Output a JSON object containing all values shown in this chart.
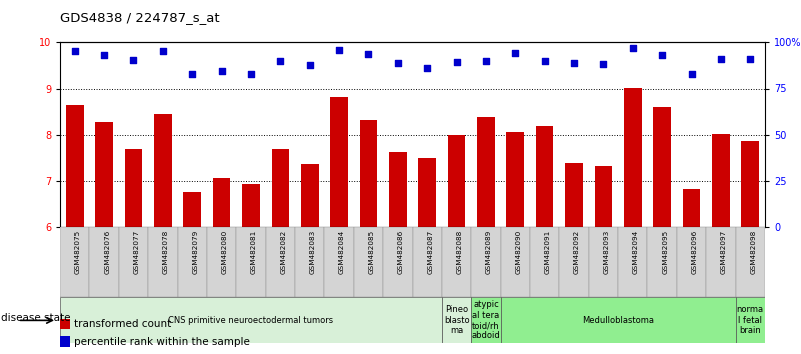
{
  "title": "GDS4838 / 224787_s_at",
  "samples": [
    "GSM482075",
    "GSM482076",
    "GSM482077",
    "GSM482078",
    "GSM482079",
    "GSM482080",
    "GSM482081",
    "GSM482082",
    "GSM482083",
    "GSM482084",
    "GSM482085",
    "GSM482086",
    "GSM482087",
    "GSM482088",
    "GSM482089",
    "GSM482090",
    "GSM482091",
    "GSM482092",
    "GSM482093",
    "GSM482094",
    "GSM482095",
    "GSM482096",
    "GSM482097",
    "GSM482098"
  ],
  "bar_values": [
    8.65,
    8.28,
    7.68,
    8.44,
    6.75,
    7.05,
    6.93,
    7.68,
    7.35,
    8.82,
    8.32,
    7.63,
    7.5,
    7.98,
    8.37,
    8.05,
    8.18,
    7.38,
    7.32,
    9.02,
    8.6,
    6.82,
    8.02,
    7.85
  ],
  "dot_values": [
    9.82,
    9.72,
    9.63,
    9.82,
    9.32,
    9.38,
    9.32,
    9.6,
    9.5,
    9.83,
    9.75,
    9.55,
    9.45,
    9.57,
    9.6,
    9.78,
    9.6,
    9.55,
    9.53,
    9.88,
    9.72,
    9.32,
    9.65,
    9.65
  ],
  "bar_color": "#CC0000",
  "dot_color": "#0000CC",
  "ylim_left": [
    6,
    10
  ],
  "ylim_right": [
    0,
    100
  ],
  "yticks_left": [
    6,
    7,
    8,
    9,
    10
  ],
  "yticks_right": [
    0,
    25,
    50,
    75,
    100
  ],
  "ytick_labels_right": [
    "0",
    "25",
    "50",
    "75",
    "100%"
  ],
  "bg_plot": "#ffffff",
  "bg_figure": "#ffffff",
  "groups": [
    {
      "label": "CNS primitive neuroectodermal tumors",
      "start": 0,
      "end": 13,
      "color": "#d8f0d8"
    },
    {
      "label": "Pineo\nblasto\nma",
      "start": 13,
      "end": 14,
      "color": "#d8f0d8"
    },
    {
      "label": "atypic\nal tera\ntoid/rh\nabdoid",
      "start": 14,
      "end": 15,
      "color": "#90ee90"
    },
    {
      "label": "Medulloblastoma",
      "start": 15,
      "end": 23,
      "color": "#90ee90"
    },
    {
      "label": "norma\nl fetal\nbrain",
      "start": 23,
      "end": 24,
      "color": "#90ee90"
    }
  ],
  "legend_bar_label": "transformed count",
  "legend_dot_label": "percentile rank within the sample",
  "disease_state_label": "disease state"
}
